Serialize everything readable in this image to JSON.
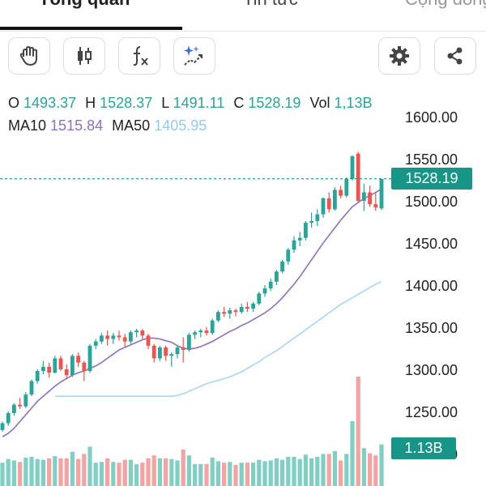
{
  "tabs": [
    {
      "label": "Tổng quan"
    },
    {
      "label": "Tin tức"
    },
    {
      "label": "Cộng đồng"
    }
  ],
  "toolbar": {
    "icons": [
      "hand-icon",
      "candlestick-icon",
      "function-icon",
      "magic-draw-icon",
      "gear-icon",
      "share-icon"
    ]
  },
  "ohlc": {
    "o_label": "O",
    "o": "1493.37",
    "h_label": "H",
    "h": "1528.37",
    "l_label": "L",
    "l": "1491.11",
    "c_label": "C",
    "c": "1528.19",
    "vol_label": "Vol",
    "vol": "1,13B"
  },
  "ma": {
    "ma10_label": "MA10",
    "ma10": "1515.84",
    "ma50_label": "MA50",
    "ma50": "1405.95"
  },
  "price_tag": "1528.19",
  "volume_tag": "1.13B",
  "colors": {
    "up": "#26a69a",
    "down": "#ef5350",
    "ma10": "#8e6fc0",
    "ma50": "#a6d8f5",
    "accent": "#179587"
  },
  "chart_data": {
    "type": "candlestick",
    "y_ticks": [
      "1600.00",
      "1550.00",
      "1500.00",
      "1450.00",
      "1400.00",
      "1350.00",
      "1300.00",
      "1250.00",
      "1200.00"
    ],
    "ylim": [
      1200,
      1600
    ],
    "last_price": 1528.19,
    "candles": [
      [
        1230,
        1240,
        1228,
        1238
      ],
      [
        1238,
        1252,
        1235,
        1250
      ],
      [
        1250,
        1262,
        1247,
        1260
      ],
      [
        1260,
        1268,
        1255,
        1258
      ],
      [
        1258,
        1275,
        1256,
        1272
      ],
      [
        1272,
        1290,
        1270,
        1288
      ],
      [
        1288,
        1302,
        1285,
        1300
      ],
      [
        1300,
        1312,
        1296,
        1305
      ],
      [
        1305,
        1310,
        1292,
        1298
      ],
      [
        1298,
        1318,
        1297,
        1315
      ],
      [
        1315,
        1318,
        1300,
        1302
      ],
      [
        1302,
        1308,
        1290,
        1295
      ],
      [
        1295,
        1320,
        1293,
        1318
      ],
      [
        1318,
        1322,
        1305,
        1310
      ],
      [
        1310,
        1312,
        1288,
        1300
      ],
      [
        1300,
        1332,
        1298,
        1330
      ],
      [
        1330,
        1338,
        1326,
        1335
      ],
      [
        1335,
        1345,
        1332,
        1342
      ],
      [
        1342,
        1348,
        1330,
        1338
      ],
      [
        1338,
        1345,
        1332,
        1342
      ],
      [
        1342,
        1348,
        1336,
        1340
      ],
      [
        1340,
        1344,
        1328,
        1335
      ],
      [
        1335,
        1348,
        1332,
        1346
      ],
      [
        1346,
        1350,
        1340,
        1348
      ],
      [
        1348,
        1350,
        1338,
        1342
      ],
      [
        1342,
        1344,
        1326,
        1330
      ],
      [
        1330,
        1332,
        1310,
        1315
      ],
      [
        1315,
        1330,
        1312,
        1328
      ],
      [
        1328,
        1330,
        1312,
        1318
      ],
      [
        1318,
        1322,
        1305,
        1320
      ],
      [
        1320,
        1330,
        1315,
        1328
      ],
      [
        1328,
        1340,
        1310,
        1325
      ],
      [
        1325,
        1345,
        1323,
        1343
      ],
      [
        1343,
        1348,
        1338,
        1346
      ],
      [
        1346,
        1350,
        1340,
        1348
      ],
      [
        1348,
        1352,
        1342,
        1345
      ],
      [
        1345,
        1362,
        1343,
        1360
      ],
      [
        1360,
        1372,
        1358,
        1370
      ],
      [
        1370,
        1376,
        1364,
        1368
      ],
      [
        1368,
        1375,
        1362,
        1372
      ],
      [
        1372,
        1374,
        1365,
        1370
      ],
      [
        1370,
        1380,
        1368,
        1376
      ],
      [
        1376,
        1382,
        1370,
        1374
      ],
      [
        1374,
        1382,
        1370,
        1380
      ],
      [
        1380,
        1394,
        1378,
        1392
      ],
      [
        1392,
        1402,
        1388,
        1398
      ],
      [
        1398,
        1410,
        1395,
        1406
      ],
      [
        1406,
        1420,
        1402,
        1418
      ],
      [
        1418,
        1432,
        1416,
        1430
      ],
      [
        1430,
        1446,
        1426,
        1444
      ],
      [
        1444,
        1460,
        1440,
        1455
      ],
      [
        1455,
        1465,
        1448,
        1458
      ],
      [
        1458,
        1478,
        1455,
        1476
      ],
      [
        1476,
        1488,
        1470,
        1478
      ],
      [
        1478,
        1492,
        1472,
        1486
      ],
      [
        1486,
        1506,
        1482,
        1505
      ],
      [
        1505,
        1512,
        1488,
        1492
      ],
      [
        1492,
        1518,
        1490,
        1515
      ],
      [
        1515,
        1520,
        1505,
        1508
      ],
      [
        1508,
        1530,
        1506,
        1528
      ],
      [
        1528,
        1556,
        1526,
        1555
      ],
      [
        1558,
        1560,
        1500,
        1502
      ],
      [
        1502,
        1522,
        1490,
        1512
      ],
      [
        1512,
        1520,
        1495,
        1498
      ],
      [
        1498,
        1512,
        1490,
        1494
      ],
      [
        1493,
        1528,
        1491,
        1528
      ]
    ],
    "ma10": [
      1222,
      1226,
      1232,
      1240,
      1248,
      1256,
      1264,
      1270,
      1276,
      1282,
      1287,
      1291,
      1295,
      1298,
      1300,
      1303,
      1306,
      1310,
      1315,
      1320,
      1325,
      1328,
      1331,
      1334,
      1337,
      1339,
      1339,
      1338,
      1336,
      1334,
      1330,
      1327,
      1326,
      1327,
      1329,
      1332,
      1335,
      1339,
      1343,
      1347,
      1350,
      1354,
      1357,
      1361,
      1365,
      1369,
      1374,
      1380,
      1387,
      1395,
      1403,
      1412,
      1422,
      1432,
      1442,
      1452,
      1461,
      1470,
      1479,
      1487,
      1495,
      1500,
      1505,
      1508,
      1512,
      1516
    ],
    "ma50": [
      1270,
      1270,
      1270,
      1270,
      1270,
      1270,
      1270,
      1270,
      1270,
      1270,
      1270,
      1270,
      1270,
      1270,
      1270,
      1270,
      1270,
      1270,
      1270,
      1270,
      1270,
      1271,
      1273,
      1276,
      1279,
      1282,
      1285,
      1287,
      1289,
      1291,
      1293,
      1296,
      1299,
      1303,
      1307,
      1311,
      1316,
      1320,
      1324,
      1329,
      1334,
      1339,
      1344,
      1349,
      1354,
      1359,
      1364,
      1369,
      1374,
      1379,
      1383,
      1387,
      1391,
      1395,
      1399,
      1403,
      1406
    ]
  }
}
